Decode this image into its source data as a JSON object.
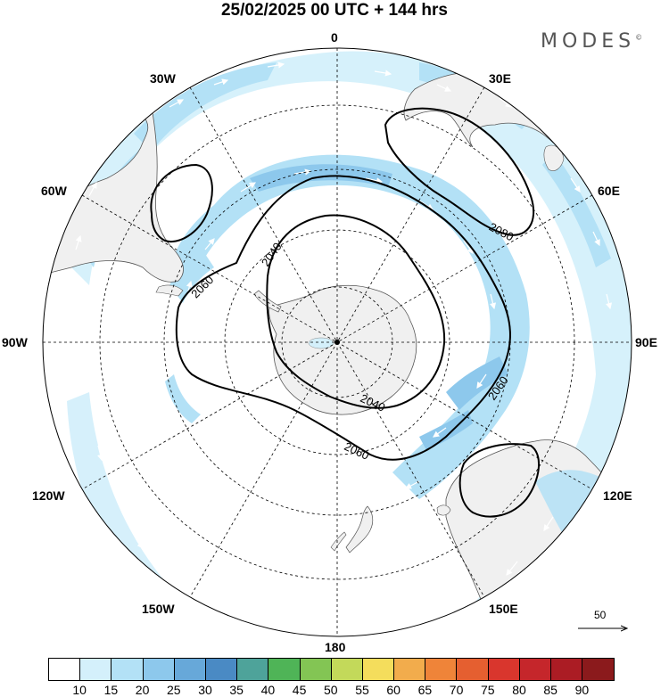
{
  "title": "25/02/2025  00 UTC  + 144 hrs",
  "brand": "MODES",
  "brand_mark": "©",
  "longitude_labels": {
    "top": "0",
    "top_left": "30W",
    "top_right": "30E",
    "upper_left": "60W",
    "upper_right": "60E",
    "left": "90W",
    "right": "90E",
    "lower_left": "120W",
    "lower_right": "120E",
    "bottom_left": "150W",
    "bottom_right": "150E",
    "bottom": "180"
  },
  "contour_labels": [
    "2080",
    "2040",
    "2060",
    "2060",
    "2040",
    "2060"
  ],
  "reference_vector": "50",
  "colorbar": {
    "colors": [
      "#ffffff",
      "#d4f0fb",
      "#b3e1f6",
      "#8dc8ec",
      "#67a8d9",
      "#4a8ac4",
      "#4ea39a",
      "#4fb457",
      "#83c554",
      "#c3d95a",
      "#f4dd5c",
      "#f2ac4c",
      "#ef8439",
      "#e55f30",
      "#d9362d",
      "#c5262b",
      "#ab1c24",
      "#8b1a1c"
    ],
    "ticks": [
      "10",
      "15",
      "20",
      "25",
      "30",
      "35",
      "40",
      "45",
      "50",
      "55",
      "60",
      "65",
      "70",
      "75",
      "80",
      "85",
      "90"
    ]
  },
  "colors": {
    "land": "#f0f0f0",
    "wind_light": "#d4f0fb",
    "wind_medium": "#b3e1f6",
    "wind_strong": "#8dc8ec"
  }
}
